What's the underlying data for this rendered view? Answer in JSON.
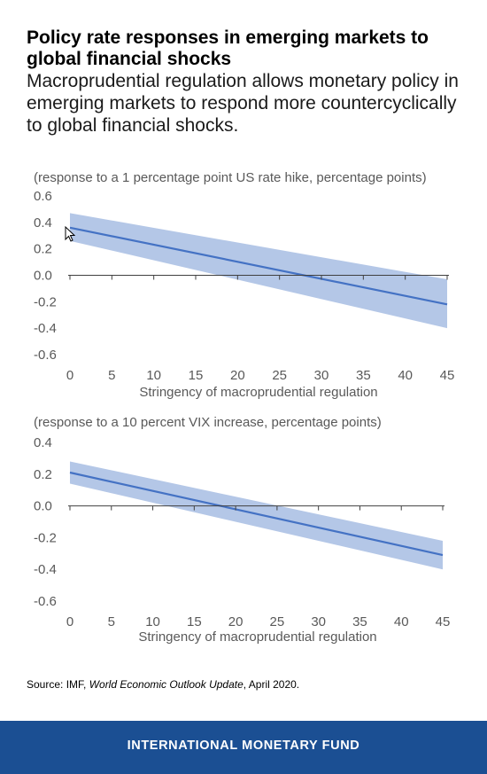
{
  "header": {
    "title": "Policy rate responses in emerging markets to global financial shocks",
    "subtitle": "Macroprudential regulation allows monetary policy in emerging markets to respond more countercyclically to global financial shocks."
  },
  "source": {
    "prefix": "Source: IMF, ",
    "publication": "World Economic Outlook Update",
    "suffix": ", April 2020."
  },
  "footer": {
    "label": "INTERNATIONAL MONETARY FUND"
  },
  "colors": {
    "line": "#4472c4",
    "band": "#b4c7e7",
    "footer": "#1b4f93"
  },
  "chart_data": [
    {
      "type": "line",
      "unit_label": "(response to a 1 percentage point US rate hike, percentage points)",
      "xlabel": "Stringency of macroprudential regulation",
      "xlim": [
        0,
        45
      ],
      "xticks": [
        0,
        5,
        10,
        15,
        20,
        25,
        30,
        35,
        40,
        45
      ],
      "ylim": [
        -0.6,
        0.6
      ],
      "yticks": [
        "0.6",
        "0.4",
        "0.2",
        "0.0",
        "-0.2",
        "-0.4",
        "-0.6"
      ],
      "grid": false,
      "series": [
        {
          "x": [
            0,
            45
          ],
          "y": [
            0.36,
            -0.22
          ],
          "upper": [
            0.47,
            -0.03
          ],
          "lower": [
            0.26,
            -0.4
          ]
        }
      ]
    },
    {
      "type": "line",
      "unit_label": "(response to a 10 percent VIX increase, percentage points)",
      "xlabel": "Stringency of macroprudential regulation",
      "xlim": [
        0,
        45
      ],
      "xticks": [
        0,
        5,
        10,
        15,
        20,
        25,
        30,
        35,
        40,
        45
      ],
      "ylim": [
        -0.6,
        0.4
      ],
      "yticks": [
        "0.4",
        "0.2",
        "0.0",
        "-0.2",
        "-0.4",
        "-0.6"
      ],
      "grid": false,
      "series": [
        {
          "x": [
            0,
            45
          ],
          "y": [
            0.21,
            -0.31
          ],
          "upper": [
            0.28,
            -0.22
          ],
          "lower": [
            0.14,
            -0.4
          ]
        }
      ]
    }
  ]
}
